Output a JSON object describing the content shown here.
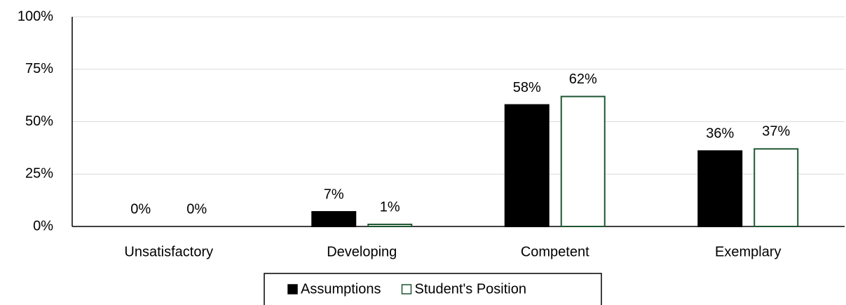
{
  "chart_data": {
    "type": "bar",
    "categories": [
      "Unsatisfactory",
      "Developing",
      "Competent",
      "Exemplary"
    ],
    "series": [
      {
        "name": "Assumptions",
        "color": "#000000",
        "values": [
          0,
          7,
          58,
          36
        ],
        "value_labels": [
          "0%",
          "7%",
          "58%",
          "36%"
        ]
      },
      {
        "name": "Student's Position",
        "color": "#1e5631",
        "fill": "#ffffff",
        "values": [
          0,
          1,
          62,
          37
        ],
        "value_labels": [
          "0%",
          "1%",
          "62%",
          "37%"
        ]
      }
    ],
    "ylim": [
      0,
      100
    ],
    "yticks": [
      {
        "value": 0,
        "label": "0%"
      },
      {
        "value": 25,
        "label": "25%"
      },
      {
        "value": 50,
        "label": "50%"
      },
      {
        "value": 75,
        "label": "75%"
      },
      {
        "value": 100,
        "label": "100%"
      }
    ],
    "grid": true,
    "legend": "bottom"
  }
}
